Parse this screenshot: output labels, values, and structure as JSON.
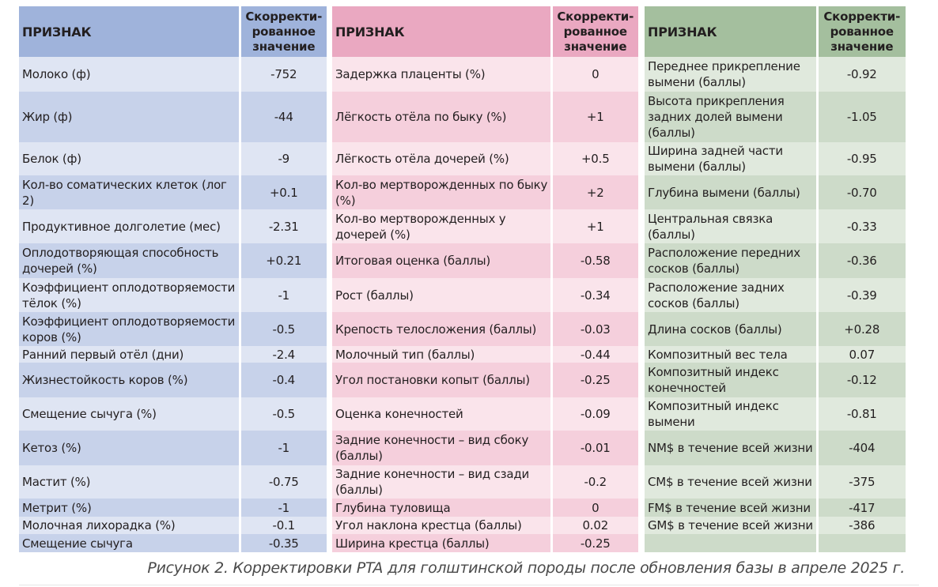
{
  "header": {
    "trait_label": "ПРИЗНАК",
    "value_label_1": "Скорректи-",
    "value_label_2": "рованное",
    "value_label_3": "значение"
  },
  "colors": {
    "blue_header": "#9fb3db",
    "pink_header": "#eaa8c1",
    "green_header": "#a4bf9e"
  },
  "tables": [
    {
      "rows": [
        {
          "trait": "Молоко (ф)",
          "value": "-752"
        },
        {
          "trait": "Жир (ф)",
          "value": "-44"
        },
        {
          "trait": "Белок (ф)",
          "value": "-9"
        },
        {
          "trait": "Кол-во соматических клеток (лог 2)",
          "value": "+0.1"
        },
        {
          "trait": "Продуктивное долголетие (мес)",
          "value": "-2.31"
        },
        {
          "trait": "Оплодотворяющая способность дочерей (%)",
          "value": "+0.21"
        },
        {
          "trait": "Коэффициент оплодотворяемости тёлок (%)",
          "value": "-1"
        },
        {
          "trait": "Коэффициент оплодотворяемости коров (%)",
          "value": "-0.5"
        },
        {
          "trait": "Ранний первый отёл (дни)",
          "value": "-2.4"
        },
        {
          "trait": "Жизнестойкость коров (%)",
          "value": "-0.4"
        },
        {
          "trait": "Смещение сычуга (%)",
          "value": "-0.5"
        },
        {
          "trait": "Кетоз (%)",
          "value": "-1"
        },
        {
          "trait": "Мастит (%)",
          "value": "-0.75"
        },
        {
          "trait": "Метрит (%)",
          "value": "-1"
        },
        {
          "trait": "Молочная лихорадка (%)",
          "value": "-0.1"
        },
        {
          "trait": "Смещение сычуга",
          "value": "-0.35"
        }
      ]
    },
    {
      "rows": [
        {
          "trait": "Задержка плаценты (%)",
          "value": "0"
        },
        {
          "trait": "Лёгкость отёла по быку (%)",
          "value": "+1"
        },
        {
          "trait": "Лёгкость отёла дочерей (%)",
          "value": "+0.5"
        },
        {
          "trait": "Кол-во мертворожденных по быку (%)",
          "value": "+2"
        },
        {
          "trait": "Кол-во мертворожденных у дочерей (%)",
          "value": "+1"
        },
        {
          "trait": "Итоговая оценка (баллы)",
          "value": "-0.58"
        },
        {
          "trait": "Рост (баллы)",
          "value": "-0.34"
        },
        {
          "trait": "Крепость телосложения (баллы)",
          "value": "-0.03"
        },
        {
          "trait": "Молочный тип (баллы)",
          "value": "-0.44"
        },
        {
          "trait": "Угол постановки копыт (баллы)",
          "value": "-0.25"
        },
        {
          "trait": "Оценка конечностей",
          "value": "-0.09"
        },
        {
          "trait": "Задние конечности – вид сбоку (баллы)",
          "value": "-0.01"
        },
        {
          "trait": "Задние конечности – вид сзади (баллы)",
          "value": "-0.2"
        },
        {
          "trait": "Глубина туловища",
          "value": "0"
        },
        {
          "trait": "Угол наклона крестца (баллы)",
          "value": "0.02"
        },
        {
          "trait": "Ширина крестца (баллы)",
          "value": "-0.25"
        }
      ]
    },
    {
      "rows": [
        {
          "trait": "Переднее прикрепление вымени (баллы)",
          "value": "-0.92"
        },
        {
          "trait": "Высота прикрепления задних долей вымени (баллы)",
          "value": "-1.05"
        },
        {
          "trait": "Ширина задней части вымени (баллы)",
          "value": "-0.95"
        },
        {
          "trait": "Глубина вымени (баллы)",
          "value": "-0.70"
        },
        {
          "trait": "Центральная связка (баллы)",
          "value": "-0.33"
        },
        {
          "trait": "Расположение передних сосков (баллы)",
          "value": "-0.36"
        },
        {
          "trait": "Расположение задних сосков (баллы)",
          "value": "-0.39"
        },
        {
          "trait": "Длина сосков (баллы)",
          "value": "+0.28"
        },
        {
          "trait": "Композитный вес тела",
          "value": "0.07"
        },
        {
          "trait": "Композитный индекс конечностей",
          "value": "-0.12"
        },
        {
          "trait": "Композитный индекс вымени",
          "value": "-0.81"
        },
        {
          "trait": "NM$ в течение всей жизни",
          "value": "-404"
        },
        {
          "trait": "CM$ в течение всей жизни",
          "value": "-375"
        },
        {
          "trait": "FM$ в течение всей жизни",
          "value": "-417"
        },
        {
          "trait": "GM$ в течение всей жизни",
          "value": "-386"
        },
        {
          "trait": "",
          "value": ""
        }
      ]
    }
  ],
  "caption": "Рисунок 2. Корректировки PTA для голштинской породы после обновления базы в апреле 2025 г."
}
